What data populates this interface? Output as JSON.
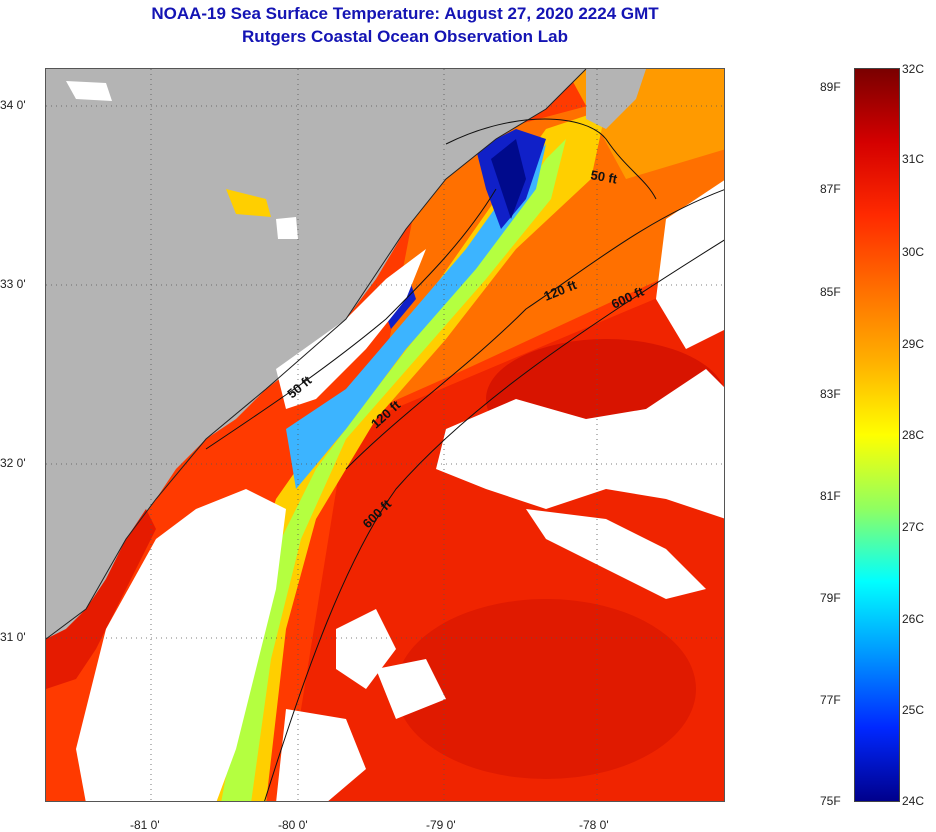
{
  "header": {
    "title": "NOAA-19 Sea Surface Temperature:  August 27, 2020 2224 GMT",
    "subtitle": "Rutgers Coastal Ocean Observation Lab"
  },
  "map": {
    "lat_labels": [
      "34 0'",
      "33 0'",
      "32 0'",
      "31 0'"
    ],
    "lon_labels": [
      "-81 0'",
      "-80 0'",
      "-79 0'",
      "-78 0'"
    ],
    "contours": {
      "c50_north": "50 ft",
      "c50_south": "50 ft",
      "c120_north": "120 ft",
      "c120_south": "120 ft",
      "c600_north": "600 ft",
      "c600_south": "600 ft"
    },
    "colors": {
      "land": "#b4b4b4",
      "cloud": "#ffffff",
      "warm": "#ff3a00",
      "hot": "#e51b00",
      "orange": "#ff7a00",
      "yellow": "#ffcf00",
      "cyan": "#3cb4ff",
      "blue": "#1020c8",
      "navy": "#000a8c"
    }
  },
  "colorbar": {
    "fahrenheit": [
      "89F",
      "87F",
      "85F",
      "83F",
      "81F",
      "79F",
      "77F",
      "75F"
    ],
    "celsius": [
      "32C",
      "31C",
      "30C",
      "29C",
      "28C",
      "27C",
      "26C",
      "25C",
      "24C"
    ],
    "gradient_colors": [
      "#7a0000",
      "#d40000",
      "#ff2a00",
      "#ff6e00",
      "#ffb000",
      "#ffff00",
      "#90ff60",
      "#00ffff",
      "#0096ff",
      "#0028ff",
      "#00008c"
    ]
  }
}
